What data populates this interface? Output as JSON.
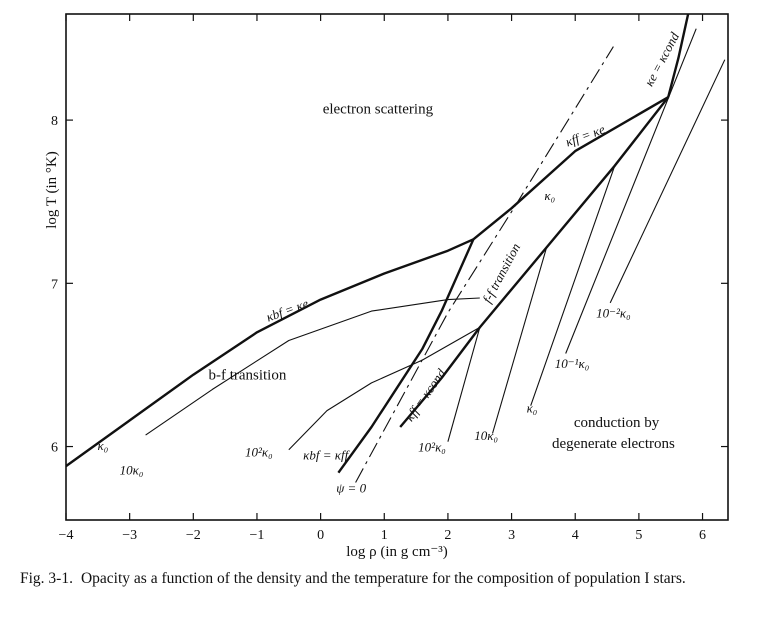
{
  "chart_data": {
    "type": "line",
    "xlabel": "log ρ (in g cm⁻³)",
    "ylabel": "log T (in °K)",
    "xlim": [
      -4,
      6.4
    ],
    "ylim": [
      5.55,
      8.65
    ],
    "x_ticks": [
      "−4",
      "−3",
      "−2",
      "−1",
      "0",
      "1",
      "2",
      "3",
      "4",
      "5",
      "6"
    ],
    "x_tick_values": [
      -4,
      -3,
      -2,
      -1,
      0,
      1,
      2,
      3,
      4,
      5,
      6
    ],
    "y_ticks": [
      "6",
      "7",
      "8"
    ],
    "y_tick_values": [
      6,
      7,
      8
    ],
    "regions": [
      {
        "text": "electron scattering",
        "x": 0.9,
        "y": 8.04
      },
      {
        "text": "b-f  transition",
        "x": -1.15,
        "y": 6.41
      },
      {
        "text": "conduction by",
        "x": 4.65,
        "y": 6.12
      },
      {
        "text": "degenerate electrons",
        "x": 4.6,
        "y": 5.99
      }
    ],
    "series": [
      {
        "name": "κbf = κe",
        "style": "thick",
        "points": [
          [
            -4,
            5.88
          ],
          [
            -3,
            6.16
          ],
          [
            -2,
            6.44
          ],
          [
            -1,
            6.7
          ],
          [
            0,
            6.9
          ],
          [
            1,
            7.06
          ],
          [
            2,
            7.2
          ],
          [
            2.4,
            7.27
          ]
        ]
      },
      {
        "name": "κff = κe",
        "style": "thick",
        "points": [
          [
            2.4,
            7.27
          ],
          [
            3.0,
            7.46
          ],
          [
            4.0,
            7.81
          ],
          [
            5.46,
            8.14
          ]
        ]
      },
      {
        "name": "κe = κcond",
        "style": "thick",
        "points": [
          [
            5.46,
            8.14
          ],
          [
            5.62,
            8.38
          ],
          [
            5.78,
            8.66
          ]
        ]
      },
      {
        "name": "κbf = κff",
        "style": "thick",
        "points": [
          [
            0.28,
            5.84
          ],
          [
            0.8,
            6.12
          ],
          [
            1.2,
            6.36
          ],
          [
            1.6,
            6.6
          ],
          [
            1.9,
            6.83
          ],
          [
            2.15,
            7.05
          ],
          [
            2.4,
            7.27
          ]
        ]
      },
      {
        "name": "κff = κcond",
        "style": "thick",
        "points": [
          [
            1.25,
            6.12
          ],
          [
            1.9,
            6.42
          ],
          [
            2.5,
            6.73
          ],
          [
            3.55,
            7.22
          ],
          [
            4.62,
            7.72
          ],
          [
            5.46,
            8.14
          ]
        ]
      },
      {
        "name": "ψ = 0",
        "style": "dashed",
        "points": [
          [
            0.55,
            5.78
          ],
          [
            2.0,
            6.82
          ],
          [
            3.05,
            7.47
          ],
          [
            4.6,
            8.45
          ]
        ]
      },
      {
        "name": "10κ₀ (b-f)",
        "style": "thin",
        "points": [
          [
            -2.75,
            6.07
          ],
          [
            -1.7,
            6.35
          ],
          [
            -0.5,
            6.65
          ],
          [
            0.8,
            6.83
          ],
          [
            2.0,
            6.9
          ],
          [
            2.5,
            6.91
          ]
        ]
      },
      {
        "name": "10²κ₀ (b-f)",
        "style": "thin",
        "points": [
          [
            -0.5,
            5.98
          ],
          [
            0.1,
            6.22
          ],
          [
            0.8,
            6.39
          ],
          [
            1.6,
            6.53
          ],
          [
            2.5,
            6.73
          ]
        ]
      },
      {
        "name": "10²κ₀",
        "style": "thin",
        "points": [
          [
            2.0,
            6.03
          ],
          [
            2.5,
            6.73
          ]
        ]
      },
      {
        "name": "10κ₀",
        "style": "thin",
        "points": [
          [
            2.7,
            6.08
          ],
          [
            3.55,
            7.22
          ]
        ]
      },
      {
        "name": "κ₀",
        "style": "thin",
        "points": [
          [
            3.3,
            6.25
          ],
          [
            4.62,
            7.72
          ]
        ]
      },
      {
        "name": "10⁻¹κ₀",
        "style": "thin",
        "points": [
          [
            3.85,
            6.57
          ],
          [
            5.9,
            8.56
          ]
        ]
      },
      {
        "name": "10⁻²κ₀",
        "style": "thin",
        "points": [
          [
            4.55,
            6.88
          ],
          [
            6.35,
            8.37
          ]
        ]
      }
    ],
    "curve_labels": [
      {
        "text": "κ₀",
        "x": -3.42,
        "y": 5.98,
        "rotate": 0
      },
      {
        "text": "10κ₀",
        "x": -2.97,
        "y": 5.83,
        "rotate": 0
      },
      {
        "text": "10²κ₀",
        "x": -0.97,
        "y": 5.94,
        "rotate": 0
      },
      {
        "text": "κbf = κe",
        "x": -0.5,
        "y": 6.81,
        "rotate": -20
      },
      {
        "text": "κff = κe",
        "x": 4.18,
        "y": 7.88,
        "rotate": -20
      },
      {
        "text": "κe = κcond",
        "x": 5.42,
        "y": 8.36,
        "rotate": -62
      },
      {
        "text": "κ₀",
        "x": 3.6,
        "y": 7.51,
        "rotate": 0
      },
      {
        "text": "f-f  transition",
        "x": 2.9,
        "y": 7.05,
        "rotate": -62
      },
      {
        "text": "10⁻²κ₀",
        "x": 4.6,
        "y": 6.79,
        "rotate": 0
      },
      {
        "text": "10⁻¹κ₀",
        "x": 3.95,
        "y": 6.48,
        "rotate": 0
      },
      {
        "text": "κ₀",
        "x": 3.32,
        "y": 6.21,
        "rotate": 0
      },
      {
        "text": "10κ₀",
        "x": 2.6,
        "y": 6.04,
        "rotate": 0
      },
      {
        "text": "10²κ₀",
        "x": 1.75,
        "y": 5.97,
        "rotate": 0
      },
      {
        "text": "κff = κcond",
        "x": 1.7,
        "y": 6.3,
        "rotate": -55
      },
      {
        "text": "κbf = κff",
        "x": 0.08,
        "y": 5.92,
        "rotate": 0
      },
      {
        "text": "ψ = 0",
        "x": 0.48,
        "y": 5.72,
        "rotate": 0
      }
    ]
  },
  "caption": {
    "lead": "Fig. 3-1.",
    "text": "Opacity as a function of the density and the temperature for the composition of population I stars."
  }
}
